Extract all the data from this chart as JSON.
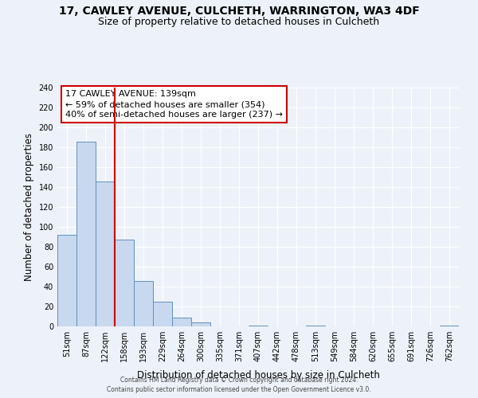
{
  "title": "17, CAWLEY AVENUE, CULCHETH, WARRINGTON, WA3 4DF",
  "subtitle": "Size of property relative to detached houses in Culcheth",
  "xlabel": "Distribution of detached houses by size in Culcheth",
  "ylabel": "Number of detached properties",
  "bin_labels": [
    "51sqm",
    "87sqm",
    "122sqm",
    "158sqm",
    "193sqm",
    "229sqm",
    "264sqm",
    "300sqm",
    "335sqm",
    "371sqm",
    "407sqm",
    "442sqm",
    "478sqm",
    "513sqm",
    "549sqm",
    "584sqm",
    "620sqm",
    "655sqm",
    "691sqm",
    "726sqm",
    "762sqm"
  ],
  "bin_counts": [
    92,
    186,
    146,
    87,
    46,
    25,
    9,
    4,
    0,
    0,
    1,
    0,
    0,
    1,
    0,
    0,
    0,
    0,
    0,
    0,
    1
  ],
  "bar_color": "#c8d8ee",
  "bar_edge_color": "#6090be",
  "vline_color": "#cc0000",
  "ylim": [
    0,
    240
  ],
  "yticks": [
    0,
    20,
    40,
    60,
    80,
    100,
    120,
    140,
    160,
    180,
    200,
    220,
    240
  ],
  "annotation_title": "17 CAWLEY AVENUE: 139sqm",
  "annotation_line1": "← 59% of detached houses are smaller (354)",
  "annotation_line2": "40% of semi-detached houses are larger (237) →",
  "annotation_box_color": "#ffffff",
  "annotation_box_edge": "#cc0000",
  "footer_line1": "Contains HM Land Registry data © Crown copyright and database right 2024.",
  "footer_line2": "Contains public sector information licensed under the Open Government Licence v3.0.",
  "bg_color": "#edf2fa",
  "grid_color": "#ffffff",
  "title_fontsize": 10,
  "subtitle_fontsize": 9,
  "axis_label_fontsize": 8.5,
  "tick_fontsize": 7,
  "annotation_fontsize": 8,
  "footer_fontsize": 5.5
}
